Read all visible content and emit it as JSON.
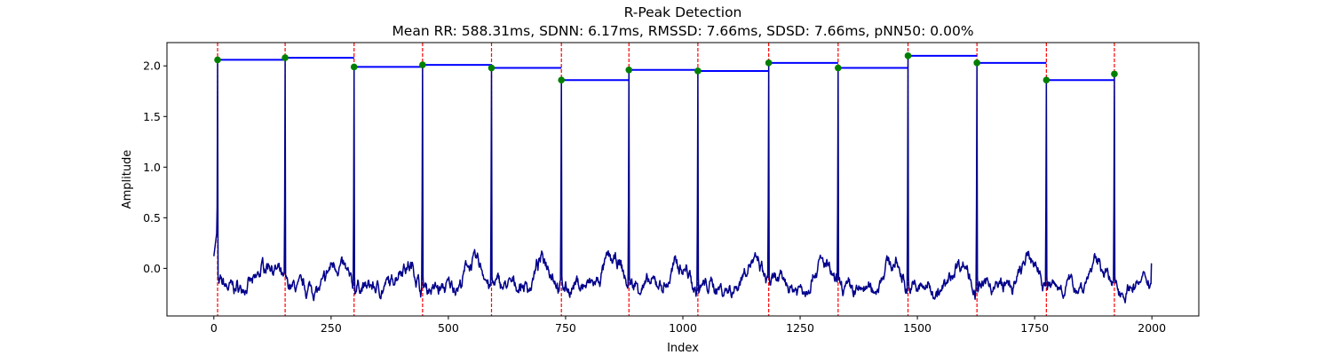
{
  "chart_data": {
    "type": "line",
    "title": "R-Peak Detection",
    "subtitle": "Mean RR: 588.31ms, SDNN: 6.17ms, RMSSD: 7.66ms, SDSD: 7.66ms, pNN50: 0.00%",
    "xlabel": "Index",
    "ylabel": "Amplitude",
    "xlim": [
      -100,
      2100
    ],
    "ylim": [
      -0.47,
      2.23
    ],
    "xticks": [
      0,
      250,
      500,
      750,
      1000,
      1250,
      1500,
      1750,
      2000
    ],
    "yticks": [
      0.0,
      0.5,
      1.0,
      1.5,
      2.0
    ],
    "xtick_labels": [
      "0",
      "250",
      "500",
      "750",
      "1000",
      "1250",
      "1500",
      "1750",
      "2000"
    ],
    "ytick_labels": [
      "0.0",
      "0.5",
      "1.0",
      "1.5",
      "2.0"
    ],
    "grid": false,
    "colors": {
      "signal": "#00008b",
      "peak_marker": "#008000",
      "peak_line": "#ff0000",
      "rr_segment": "#0000ff"
    },
    "signal": {
      "x_start": 0,
      "x_end": 1999,
      "baseline_range": [
        -0.33,
        0.24
      ],
      "start_value": 0.12,
      "end_value": 0.05
    },
    "r_peaks": {
      "x": [
        8,
        152,
        299,
        445,
        592,
        741,
        885,
        1032,
        1183,
        1331,
        1480,
        1627,
        1775,
        1920
      ],
      "y": [
        2.06,
        2.08,
        1.99,
        2.01,
        1.98,
        1.86,
        1.96,
        1.95,
        2.03,
        1.98,
        2.1,
        2.03,
        1.86,
        1.92
      ]
    }
  }
}
